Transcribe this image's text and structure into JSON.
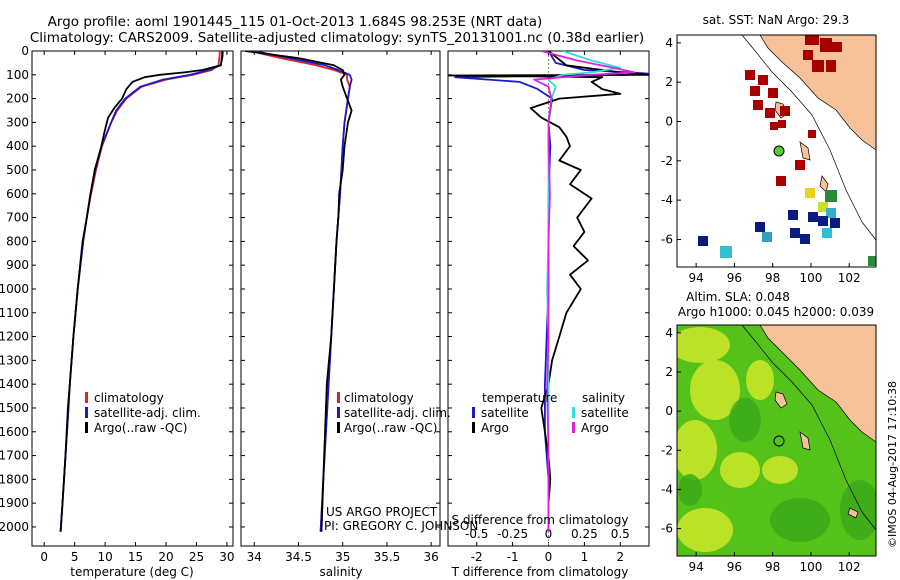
{
  "title_line1": "Argo profile: aoml 1901445_115 01-Oct-2013 1.684S 98.253E (NRT data)",
  "title_line2": "Climatology: CARS2009. Satellite-adjusted climatology: synTS_20131001.nc (0.38d earlier)",
  "project_line1": "US ARGO PROJECT",
  "project_line2": "PI: GREGORY C. JOHNSON",
  "sst_title": "sat. SST: NaN Argo: 29.3",
  "sla_title1": "Altim. SLA: 0.048",
  "sla_title2": "Argo h1000: 0.045 h2000: 0.039",
  "credit": "©IMOS 04-Aug-2017 17:10:38",
  "colors": {
    "climatology": "#dd2222",
    "satellite": "#1a1acc",
    "argo": "#000000",
    "sal_satellite": "#33dddd",
    "sal_argo": "#dd22dd",
    "land": "#f7c199",
    "sst_high": "#a80000",
    "sst_low": "#0a1a80",
    "sla_green": "#55c21a",
    "sla_yellow": "#d8ea2a"
  },
  "depth_ticks": [
    "0",
    "100",
    "200",
    "300",
    "400",
    "500",
    "600",
    "700",
    "800",
    "900",
    "1000",
    "1100",
    "1200",
    "1300",
    "1400",
    "1500",
    "1600",
    "1700",
    "1800",
    "1900",
    "2000"
  ],
  "lon_ticks": [
    "94",
    "96",
    "98",
    "100",
    "102"
  ],
  "lat_ticks": [
    "4",
    "2",
    "0",
    "-2",
    "-4",
    "-6"
  ],
  "chart_data": [
    {
      "type": "line",
      "xlabel": "temperature (deg C)",
      "ylabel": "",
      "xlim": [
        -2,
        31
      ],
      "ylim": [
        2080,
        0
      ],
      "x_ticks": [
        "0",
        "5",
        "10",
        "15",
        "20",
        "25",
        "30"
      ],
      "legend": [
        "climatology",
        "satellite-adj. clim.",
        "Argo(..raw -QC)"
      ],
      "series": [
        {
          "name": "climatology",
          "depth": [
            0,
            20,
            60,
            80,
            100,
            120,
            150,
            200,
            250,
            300,
            400,
            500,
            600,
            700,
            800,
            1000,
            1200,
            1400,
            1500,
            1700,
            1900,
            2020
          ],
          "values": [
            28.8,
            28.8,
            28.6,
            27.5,
            24.5,
            20,
            16,
            13.5,
            12,
            11,
            9.5,
            8.5,
            7.7,
            7,
            6.4,
            5.5,
            4.8,
            4.2,
            4,
            3.5,
            3,
            2.7
          ]
        },
        {
          "name": "satellite-adj. clim.",
          "depth": [
            0,
            20,
            60,
            80,
            100,
            120,
            150,
            200,
            250,
            300,
            400,
            500,
            600,
            700,
            800,
            1000,
            1200,
            1400,
            1500,
            1700,
            1900,
            2020
          ],
          "values": [
            29.2,
            29.2,
            29,
            27,
            24,
            19.5,
            15.8,
            13.3,
            11.8,
            11,
            9.4,
            8.4,
            7.6,
            7,
            6.4,
            5.5,
            4.8,
            4.2,
            4,
            3.5,
            3,
            2.7
          ]
        },
        {
          "name": "Argo(..raw -QC)",
          "depth": [
            0,
            20,
            60,
            80,
            90,
            100,
            110,
            130,
            160,
            200,
            240,
            280,
            350,
            400,
            500,
            600,
            700,
            800,
            900,
            1000,
            1200,
            1400,
            1500,
            1700,
            1900,
            2020
          ],
          "values": [
            29.3,
            29.3,
            29,
            26,
            23,
            19,
            16.5,
            14.5,
            13.5,
            12.8,
            11.5,
            10.5,
            9.8,
            9.4,
            8.3,
            7.6,
            7,
            6.3,
            5.9,
            5.5,
            4.8,
            4.2,
            3.9,
            3.5,
            3,
            2.7
          ]
        }
      ]
    },
    {
      "type": "line",
      "xlabel": "salinity",
      "ylabel": "",
      "xlim": [
        33.85,
        36.1
      ],
      "ylim": [
        2080,
        0
      ],
      "x_ticks": [
        "34",
        "34.5",
        "35",
        "35.5",
        "36"
      ],
      "legend": [
        "climatology",
        "satellite-adj. clim.",
        "Argo(..raw -QC)"
      ],
      "series": [
        {
          "name": "climatology",
          "depth": [
            0,
            30,
            60,
            80,
            100,
            120,
            150,
            200,
            300,
            400,
            600,
            800,
            1000,
            1400,
            1800,
            2020
          ],
          "values": [
            33.95,
            34.3,
            34.7,
            34.9,
            35.05,
            35.05,
            35.08,
            35.06,
            35.02,
            35.0,
            34.97,
            34.93,
            34.9,
            34.84,
            34.78,
            34.75
          ]
        },
        {
          "name": "satellite-adj. clim.",
          "depth": [
            0,
            30,
            60,
            80,
            100,
            120,
            150,
            200,
            300,
            400,
            600,
            800,
            1000,
            1400,
            1800,
            2020
          ],
          "values": [
            34.0,
            34.4,
            34.8,
            34.95,
            35.08,
            35.1,
            35.08,
            35.06,
            35.02,
            35.0,
            34.97,
            34.93,
            34.9,
            34.84,
            34.78,
            34.75
          ]
        },
        {
          "name": "Argo(..raw -QC)",
          "depth": [
            0,
            30,
            60,
            80,
            100,
            110,
            120,
            150,
            200,
            250,
            300,
            400,
            500,
            600,
            700,
            800,
            1000,
            1200,
            1400,
            1800,
            2020
          ],
          "values": [
            33.9,
            34.5,
            34.9,
            35.0,
            35.02,
            35.0,
            34.98,
            35.0,
            35.05,
            35.1,
            35.06,
            35.02,
            35.0,
            34.96,
            34.95,
            34.93,
            34.9,
            34.87,
            34.82,
            34.78,
            34.76
          ]
        }
      ]
    },
    {
      "type": "line",
      "xlabel": "T difference from climatology",
      "xlabel2": "S difference from climatology",
      "ylabel": "",
      "xlim": [
        -2.8,
        2.8
      ],
      "ylim": [
        2080,
        0
      ],
      "x_ticks": [
        "-2",
        "-1",
        "0",
        "1",
        "2"
      ],
      "x_ticks_s": [
        "-0.5",
        "-0.25",
        "0",
        "0.25",
        "0.5"
      ],
      "legend_headers": [
        "temperature",
        "salinity"
      ],
      "legend": [
        "satellite",
        "Argo",
        "satellite",
        "Argo"
      ],
      "series": [
        {
          "name": "satellite",
          "group": "temperature",
          "depth": [
            0,
            50,
            80,
            95,
            100,
            110,
            130,
            160,
            200,
            300,
            400,
            600,
            800,
            1000,
            1200,
            1400,
            1600,
            1800,
            2020
          ],
          "values": [
            0,
            0.2,
            1.0,
            2.8,
            2.2,
            -2.6,
            -0.8,
            -0.3,
            0.1,
            0.0,
            0.05,
            0.0,
            0.0,
            0.0,
            -0.05,
            -0.1,
            -0.1,
            0.0,
            0.0
          ]
        },
        {
          "name": "Argo",
          "group": "temperature",
          "depth": [
            0,
            60,
            90,
            100,
            103,
            110,
            130,
            160,
            180,
            200,
            240,
            280,
            320,
            360,
            400,
            460,
            500,
            560,
            620,
            700,
            760,
            820,
            880,
            940,
            1000,
            1100,
            1200,
            1300,
            1400,
            1500,
            1600,
            1700,
            1800,
            1900,
            2020
          ],
          "values": [
            0,
            0.5,
            2.0,
            2.8,
            -2.8,
            1.5,
            1.2,
            1.5,
            2.0,
            0.3,
            -0.5,
            -0.2,
            0.3,
            0.5,
            0.6,
            0.3,
            0.9,
            0.6,
            1.2,
            0.8,
            1.0,
            0.7,
            1.1,
            0.6,
            0.9,
            0.5,
            0.3,
            0.1,
            0.0,
            -0.2,
            -0.1,
            0.0,
            0.05,
            0.0,
            0.0
          ]
        },
        {
          "name": "satellite",
          "group": "salinity",
          "depth": [
            0,
            40,
            70,
            90,
            100,
            120,
            150,
            200,
            300,
            400,
            600,
            800,
            1000,
            1200,
            1400,
            1700,
            2020
          ],
          "values": [
            0.1,
            0.3,
            0.5,
            0.3,
            0.1,
            0.0,
            0.05,
            0.02,
            0.0,
            0.0,
            0.0,
            0.0,
            -0.01,
            0.0,
            0.0,
            0.0,
            0.0
          ]
        },
        {
          "name": "Argo",
          "group": "salinity",
          "depth": [
            0,
            40,
            70,
            90,
            100,
            120,
            150,
            200,
            300,
            400,
            600,
            800,
            1000,
            1200,
            1400,
            1700,
            2020
          ],
          "values": [
            -0.05,
            0.2,
            0.45,
            0.6,
            0.3,
            -0.1,
            0.0,
            0.02,
            0.0,
            0.0,
            0.01,
            0.0,
            0.0,
            0.0,
            -0.01,
            0.0,
            0.0
          ]
        }
      ]
    }
  ]
}
